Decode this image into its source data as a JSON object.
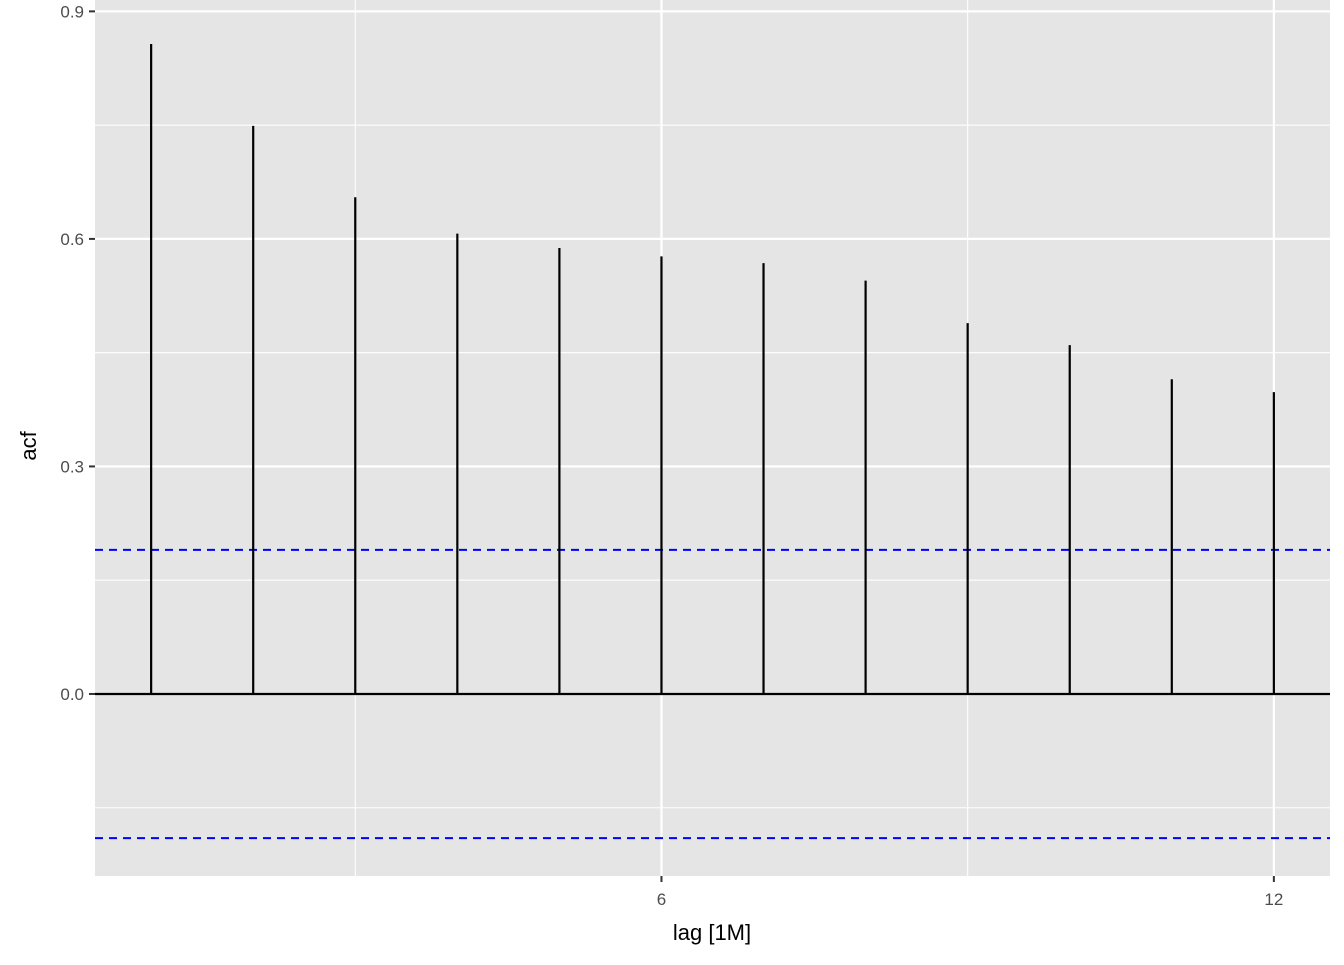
{
  "chart_data": {
    "type": "bar",
    "subtype": "acf-correlogram",
    "title": "",
    "xlabel": "lag [1M]",
    "ylabel": "acf",
    "x": [
      1,
      2,
      3,
      4,
      5,
      6,
      7,
      8,
      9,
      10,
      11,
      12
    ],
    "values": [
      0.857,
      0.749,
      0.655,
      0.607,
      0.588,
      0.577,
      0.568,
      0.545,
      0.489,
      0.46,
      0.415,
      0.398
    ],
    "xlim": [
      0.45,
      12.55
    ],
    "ylim": [
      -0.24,
      0.915
    ],
    "x_ticks": [
      6,
      12
    ],
    "x_tick_labels": [
      "6",
      "12"
    ],
    "x_minor_ticks": [
      3,
      9
    ],
    "y_ticks": [
      0.0,
      0.3,
      0.6,
      0.9
    ],
    "y_tick_labels": [
      "0.0",
      "0.3",
      "0.6",
      "0.9"
    ],
    "y_minor_ticks": [
      -0.15,
      0.15,
      0.45,
      0.75
    ],
    "confidence_bounds": [
      0.19,
      -0.19
    ],
    "grid": true,
    "legend": "none",
    "colors": {
      "panel_background": "#e5e5e5",
      "grid": "#ffffff",
      "bars": "#000000",
      "zero_line": "#000000",
      "bounds": "#0000ff",
      "tick_text": "#4d4d4d"
    }
  }
}
